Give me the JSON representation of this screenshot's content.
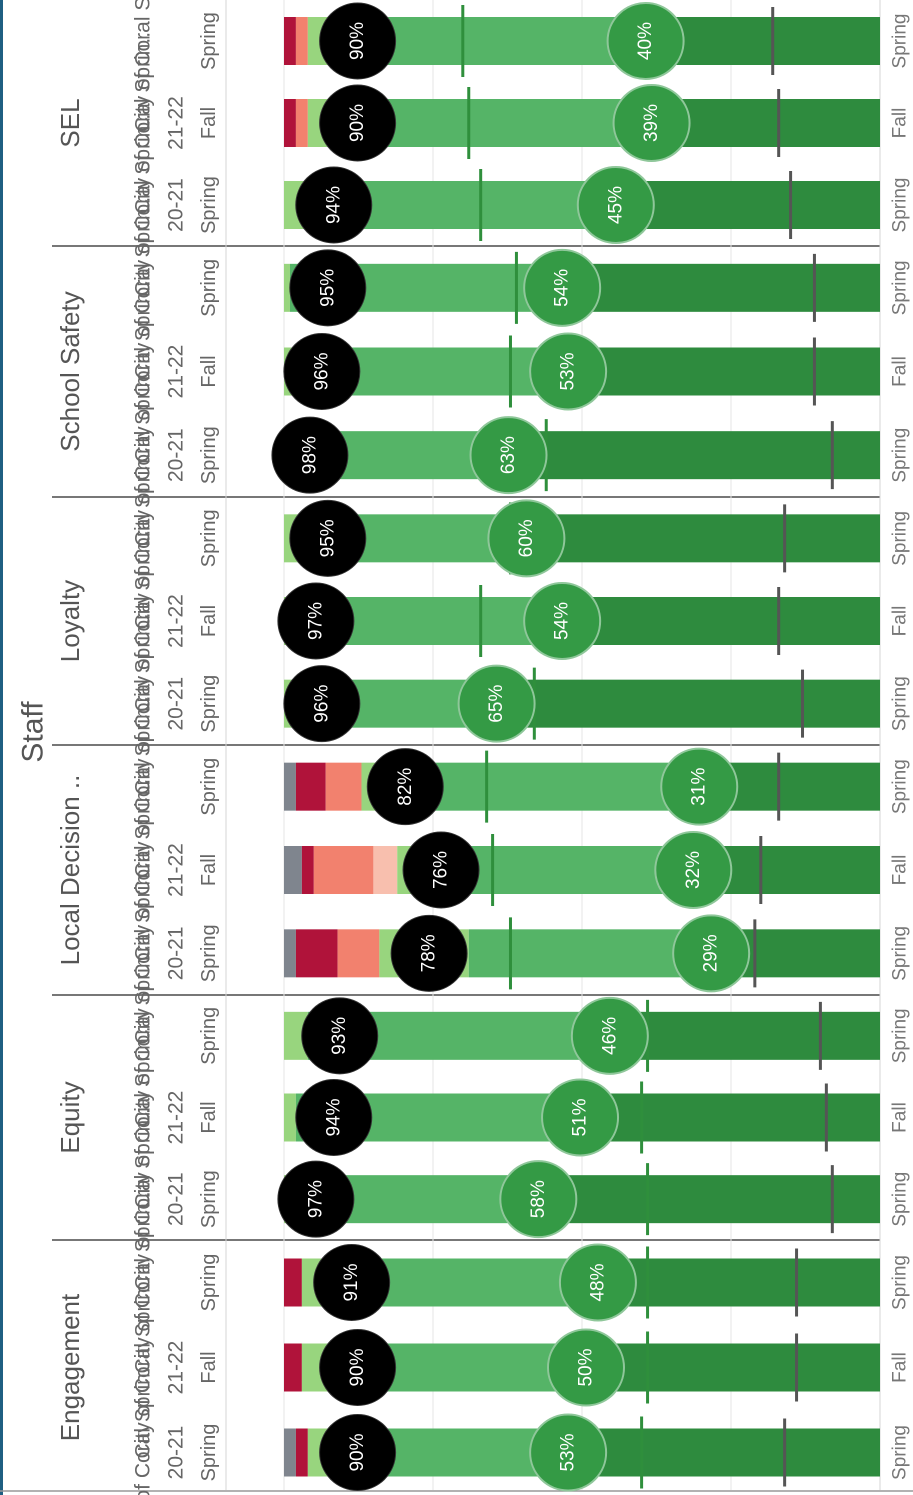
{
  "chart_data": {
    "type": "bar",
    "orientation": "stacked-100-percent, rotated",
    "title": "Staff",
    "xlim": [
      0,
      100
    ],
    "grid": true,
    "colors": {
      "gray": "#7f858e",
      "dark_red": "#b0133a",
      "salmon": "#f2816e",
      "light_pink": "#f8bfae",
      "light_green": "#98d57e",
      "mid_green": "#55b467",
      "dark_green": "#2e8b3e",
      "favorable_circle": "#000000",
      "very_favorable_circle": "#349a45"
    },
    "groups": [
      {
        "name": "Engagement",
        "bars": [
          {
            "school": "City of Coral Sprin..",
            "year": "20-21",
            "term": "Spring",
            "favorable_label": "90%",
            "very_favorable_label": "53%",
            "segments": [
              2,
              2,
              0,
              0,
              4,
              39,
              53
            ],
            "favorable_marker": 84,
            "very_favorable_marker": 60
          },
          {
            "school": "City of Coral Sprin..",
            "year": "21-22",
            "term": "Fall",
            "favorable_label": "90%",
            "very_favorable_label": "50%",
            "segments": [
              0,
              3,
              0,
              0,
              9,
              38,
              50
            ],
            "favorable_marker": 86,
            "very_favorable_marker": 61
          },
          {
            "school": "City of Coral Sprin..",
            "year": "21-22",
            "term": "Spring",
            "favorable_label": "91%",
            "very_favorable_label": "48%",
            "segments": [
              0,
              3,
              0,
              0,
              8,
              41,
              48
            ],
            "favorable_marker": 86,
            "very_favorable_marker": 61
          }
        ]
      },
      {
        "name": "Equity",
        "bars": [
          {
            "school": "City of Coral Sprin..",
            "year": "20-21",
            "term": "Spring",
            "favorable_label": "97%",
            "very_favorable_label": "58%",
            "segments": [
              0,
              0,
              0,
              0,
              3,
              39,
              58
            ],
            "favorable_marker": 92,
            "very_favorable_marker": 61
          },
          {
            "school": "City of Coral Sprin..",
            "year": "21-22",
            "term": "Fall",
            "favorable_label": "94%",
            "very_favorable_label": "51%",
            "segments": [
              0,
              0,
              0,
              0,
              2,
              47,
              51
            ],
            "favorable_marker": 91,
            "very_favorable_marker": 60
          },
          {
            "school": "City of Coral Sprin..",
            "year": "21-22",
            "term": "Spring",
            "favorable_label": "93%",
            "very_favorable_label": "46%",
            "segments": [
              0,
              0,
              0,
              0,
              4,
              50,
              46
            ],
            "favorable_marker": 90,
            "very_favorable_marker": 61
          }
        ]
      },
      {
        "name": "Local Decision ..",
        "bars": [
          {
            "school": "City of Coral Sprin..",
            "year": "20-21",
            "term": "Spring",
            "favorable_label": "78%",
            "very_favorable_label": "29%",
            "segments": [
              2,
              7,
              7,
              0,
              15,
              40,
              29
            ],
            "favorable_marker": 79,
            "very_favorable_marker": 38
          },
          {
            "school": "City of Coral Sprin..",
            "year": "21-22",
            "term": "Fall",
            "favorable_label": "76%",
            "very_favorable_label": "32%",
            "segments": [
              3,
              2,
              10,
              4,
              11,
              38,
              32
            ],
            "favorable_marker": 80,
            "very_favorable_marker": 35
          },
          {
            "school": "City of Coral Sprin..",
            "year": "21-22",
            "term": "Spring",
            "favorable_label": "82%",
            "very_favorable_label": "31%",
            "segments": [
              2,
              5,
              6,
              0,
              11,
              45,
              31
            ],
            "favorable_marker": 83,
            "very_favorable_marker": 34
          }
        ]
      },
      {
        "name": "Loyalty",
        "bars": [
          {
            "school": "City of Coral Sprin..",
            "year": "20-21",
            "term": "Spring",
            "favorable_label": "96%",
            "very_favorable_label": "65%",
            "segments": [
              0,
              0,
              0,
              0,
              3,
              32,
              65
            ],
            "favorable_marker": 87,
            "very_favorable_marker": 42
          },
          {
            "school": "City of Coral Sprin..",
            "year": "21-22",
            "term": "Fall",
            "favorable_label": "97%",
            "very_favorable_label": "54%",
            "segments": [
              0,
              0,
              0,
              0,
              8,
              38,
              54
            ],
            "favorable_marker": 83,
            "very_favorable_marker": 33
          },
          {
            "school": "City of Coral Sprin..",
            "year": "21-22",
            "term": "Spring",
            "favorable_label": "95%",
            "very_favorable_label": "60%",
            "segments": [
              0,
              0,
              0,
              0,
              3,
              37,
              60
            ],
            "favorable_marker": 84,
            "very_favorable_marker": 38
          }
        ]
      },
      {
        "name": "School Safety",
        "bars": [
          {
            "school": "City of Coral Sprin..",
            "year": "20-21",
            "term": "Spring",
            "favorable_label": "98%",
            "very_favorable_label": "63%",
            "segments": [
              0,
              0,
              0,
              0,
              2,
              35,
              63
            ],
            "favorable_marker": 92,
            "very_favorable_marker": 44
          },
          {
            "school": "City of Coral Sprin..",
            "year": "21-22",
            "term": "Fall",
            "favorable_label": "96%",
            "very_favorable_label": "53%",
            "segments": [
              0,
              0,
              0,
              0,
              3,
              44,
              53
            ],
            "favorable_marker": 89,
            "very_favorable_marker": 38
          },
          {
            "school": "City of Coral Sprin..",
            "year": "21-22",
            "term": "Spring",
            "favorable_label": "95%",
            "very_favorable_label": "54%",
            "segments": [
              0,
              0,
              0,
              0,
              1,
              45,
              54
            ],
            "favorable_marker": 89,
            "very_favorable_marker": 39
          }
        ]
      },
      {
        "name": "SEL",
        "bars": [
          {
            "school": "City of Coral Sprin..",
            "year": "20-21",
            "term": "Spring",
            "favorable_label": "94%",
            "very_favorable_label": "45%",
            "segments": [
              0,
              0,
              0,
              0,
              5,
              50,
              45
            ],
            "favorable_marker": 85,
            "very_favorable_marker": 33
          },
          {
            "school": "City of Coral Sprin..",
            "year": "21-22",
            "term": "Fall",
            "favorable_label": "90%",
            "very_favorable_label": "39%",
            "segments": [
              0,
              2,
              2,
              0,
              8,
              49,
              39
            ],
            "favorable_marker": 83,
            "very_favorable_marker": 31
          },
          {
            "school": "City of Coral Sprin..",
            "year": "21-22",
            "term": "Spring",
            "favorable_label": "90%",
            "very_favorable_label": "40%",
            "segments": [
              0,
              2,
              2,
              0,
              7,
              49,
              40
            ],
            "favorable_marker": 82,
            "very_favorable_marker": 30
          }
        ]
      }
    ],
    "right_axis_labels": [
      "Spring",
      "Fall",
      "Spring",
      "Spring",
      "Fall",
      "Spring",
      "Spring",
      "Fall",
      "Spring",
      "Spring",
      "Fall",
      "Spring",
      "Spring",
      "Fall",
      "Spring",
      "Spring",
      "Fall",
      "Spring"
    ]
  }
}
